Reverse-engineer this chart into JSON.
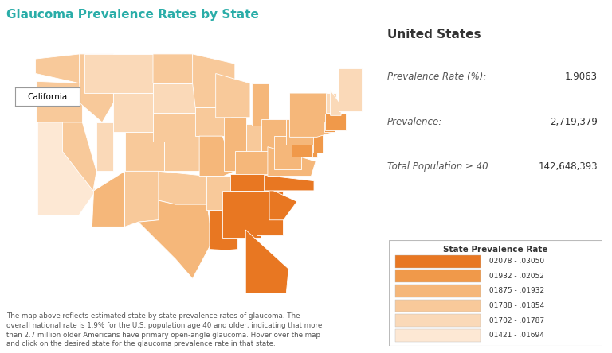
{
  "title": "Glaucoma Prevalence Rates by State",
  "title_color": "#2AADA8",
  "background_color": "#FFFFFF",
  "info_panel": {
    "header": "United States",
    "rows": [
      {
        "label": "Prevalence Rate (%):",
        "value": "1.9063"
      },
      {
        "label": "Prevalence:",
        "value": "2,719,379"
      },
      {
        "label": "Total Population ≥ 40",
        "value": "142,648,393"
      }
    ]
  },
  "legend": {
    "title": "State Prevalence Rate",
    "entries": [
      {
        "range": ".02078 - .03050",
        "color": "#E87722"
      },
      {
        "range": ".01932 - .02052",
        "color": "#F0994A"
      },
      {
        "range": ".01875 - .01932",
        "color": "#F5B77A"
      },
      {
        "range": ".01788 - .01854",
        "color": "#F8C99A"
      },
      {
        "range": ".01702 - .01787",
        "color": "#FAD9B8"
      },
      {
        "range": ".01421 - .01694",
        "color": "#FDE8D4"
      }
    ]
  },
  "footnote": "The map above reflects estimated state-by-state prevalence rates of glaucoma. The\noverall national rate is 1.9% for the U.S. population age 40 and older, indicating that more\nthan 2.7 million older Americans have primary open-angle glaucoma. Hover over the map\nand click on the desired state for the glaucoma prevalence rate in that state.",
  "california_label": "California",
  "state_colors": {
    "AL": "#E87722",
    "AK": "#FAD9B8",
    "AZ": "#F5B77A",
    "AR": "#F8C99A",
    "CA": "#FDE8D4",
    "CO": "#F8C99A",
    "CT": "#F0994A",
    "DE": "#F0994A",
    "FL": "#E87722",
    "GA": "#E87722",
    "HI": "#E87722",
    "ID": "#F8C99A",
    "IL": "#F5B77A",
    "IN": "#F8C99A",
    "IA": "#F8C99A",
    "KS": "#F8C99A",
    "KY": "#F5B77A",
    "LA": "#E87722",
    "ME": "#FAD9B8",
    "MD": "#F0994A",
    "MA": "#F0994A",
    "MI": "#F5B77A",
    "MN": "#F8C99A",
    "MS": "#E87722",
    "MO": "#F5B77A",
    "MT": "#FAD9B8",
    "NE": "#F8C99A",
    "NV": "#F8C99A",
    "NH": "#FAD9B8",
    "NJ": "#F0994A",
    "NM": "#F8C99A",
    "NY": "#F5B77A",
    "NC": "#E87722",
    "ND": "#F8C99A",
    "OH": "#F5B77A",
    "OK": "#F8C99A",
    "OR": "#F8C99A",
    "PA": "#F5B77A",
    "RI": "#F0994A",
    "SC": "#E87722",
    "SD": "#FAD9B8",
    "TN": "#E87722",
    "TX": "#F5B77A",
    "UT": "#FAD9B8",
    "VT": "#FAD9B8",
    "VA": "#F5B77A",
    "WA": "#F8C99A",
    "WV": "#F5B77A",
    "WI": "#F8C99A",
    "WY": "#FAD9B8",
    "DC": "#F0994A"
  }
}
